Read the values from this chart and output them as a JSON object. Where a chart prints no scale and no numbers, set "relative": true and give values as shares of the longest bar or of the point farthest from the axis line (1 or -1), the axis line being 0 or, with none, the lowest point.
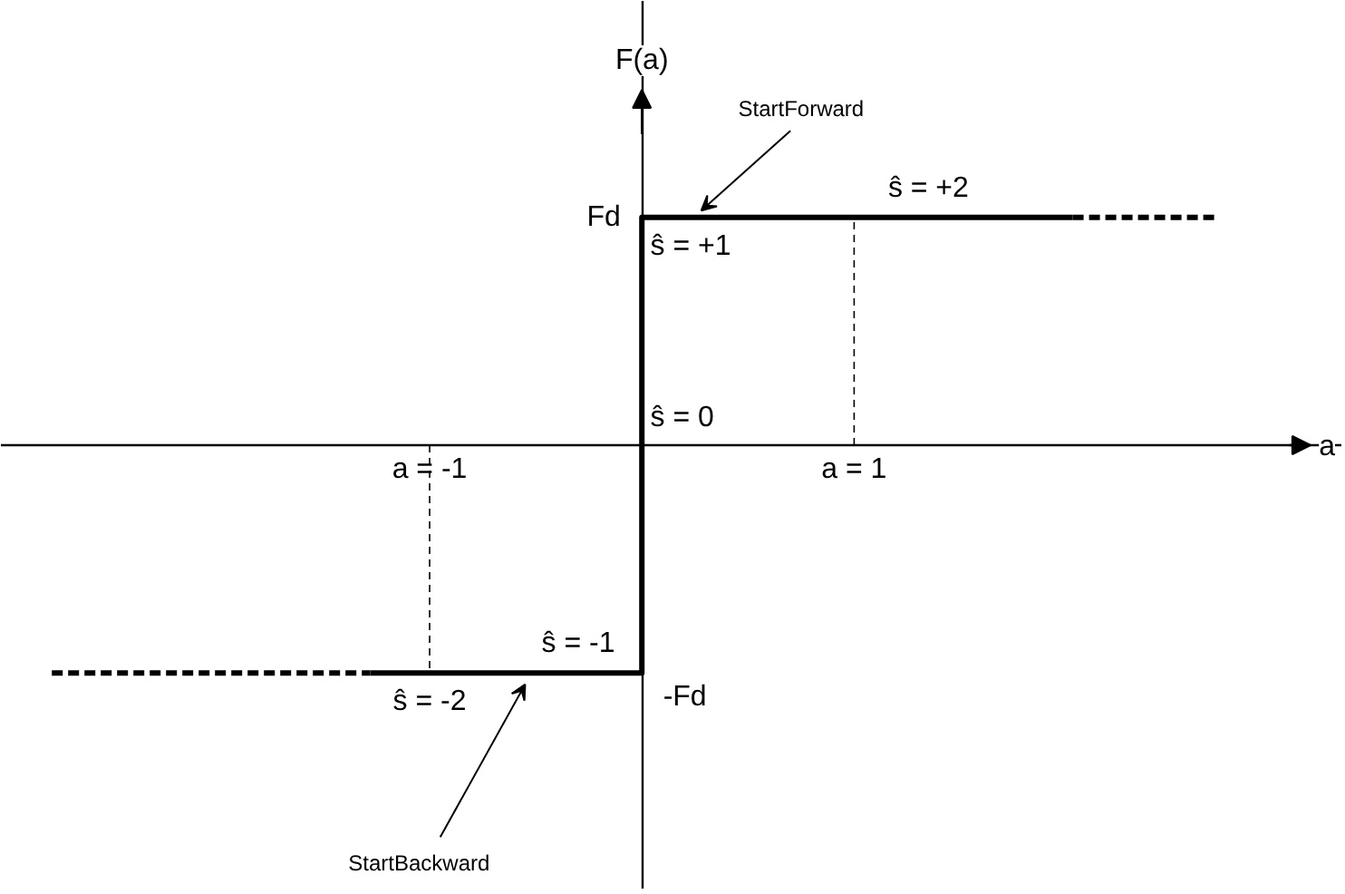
{
  "chart_data": {
    "type": "line",
    "xlabel": "a",
    "relative": true,
    "xlim": [
      -3.02,
      3.3
    ],
    "xticks": [
      {
        "value": -1,
        "label": "a = -1"
      },
      {
        "value": 1,
        "label": "a = 1"
      }
    ],
    "grid": false,
    "marker": "none",
    "series": [
      {
        "x": [
          -1.28,
          0,
          0,
          2.03
        ],
        "values": [
          -1,
          -1,
          1,
          1
        ],
        "color": "#000000",
        "line_style": "solid"
      },
      {
        "x": [
          -2.78,
          -1.28
        ],
        "values": [
          -1,
          -1
        ],
        "color": "#000000",
        "line_style": "dashed"
      },
      {
        "x": [
          2.03,
          2.7
        ],
        "values": [
          1,
          1
        ],
        "color": "#000000",
        "line_style": "dashed"
      },
      {
        "x": [
          -1,
          -1
        ],
        "values": [
          0,
          -1
        ],
        "color": "#000000",
        "line_style": "dotted"
      },
      {
        "x": [
          1,
          1
        ],
        "values": [
          0,
          1
        ],
        "color": "#000000",
        "line_style": "dotted"
      }
    ],
    "annotations": [
      "F(a)",
      "StartForward",
      "ŝ = +2",
      "Fd",
      "ŝ = +1",
      "ŝ = 0",
      "ŝ = -1",
      "-Fd",
      "ŝ = -2",
      "StartBackward"
    ]
  }
}
